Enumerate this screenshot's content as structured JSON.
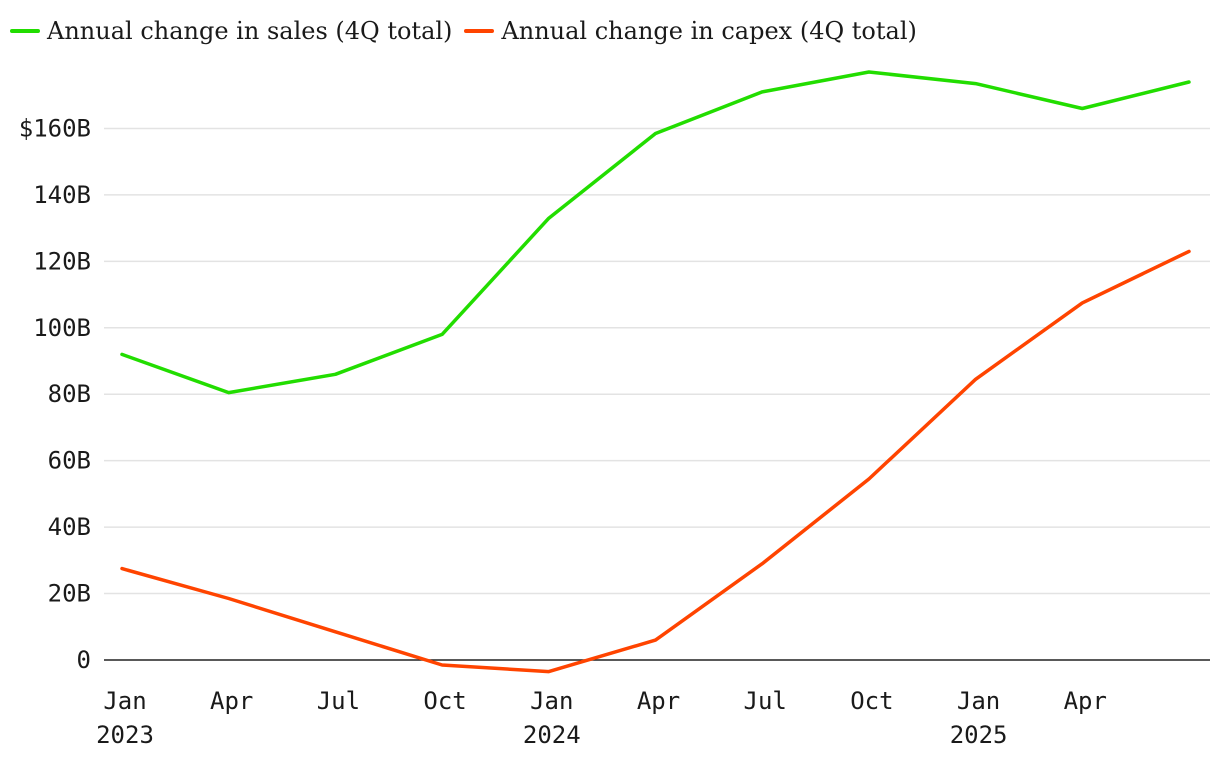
{
  "chart_data": {
    "type": "line",
    "x": [
      "2023-01",
      "2023-04",
      "2023-07",
      "2023-10",
      "2024-01",
      "2024-04",
      "2024-07",
      "2024-10",
      "2025-01",
      "2025-04",
      "2025-07"
    ],
    "x_ticks": [
      {
        "x": "2023-01",
        "label": "Jan",
        "year": "2023"
      },
      {
        "x": "2023-04",
        "label": "Apr",
        "year": ""
      },
      {
        "x": "2023-07",
        "label": "Jul",
        "year": ""
      },
      {
        "x": "2023-10",
        "label": "Oct",
        "year": ""
      },
      {
        "x": "2024-01",
        "label": "Jan",
        "year": "2024"
      },
      {
        "x": "2024-04",
        "label": "Apr",
        "year": ""
      },
      {
        "x": "2024-07",
        "label": "Jul",
        "year": ""
      },
      {
        "x": "2024-10",
        "label": "Oct",
        "year": ""
      },
      {
        "x": "2025-01",
        "label": "Jan",
        "year": "2025"
      },
      {
        "x": "2025-04",
        "label": "Apr",
        "year": ""
      }
    ],
    "y_ticks": [
      {
        "value": 0,
        "label": "0"
      },
      {
        "value": 20,
        "label": "20B"
      },
      {
        "value": 40,
        "label": "40B"
      },
      {
        "value": 60,
        "label": "60B"
      },
      {
        "value": 80,
        "label": "80B"
      },
      {
        "value": 100,
        "label": "100B"
      },
      {
        "value": 120,
        "label": "120B"
      },
      {
        "value": 140,
        "label": "140B"
      },
      {
        "value": 160,
        "label": "$160B"
      }
    ],
    "ylim": [
      -5,
      180
    ],
    "grid": true,
    "legend_position": "top-left",
    "series": [
      {
        "name": "Annual change in sales (4Q total)",
        "color": "#22dd00",
        "values": [
          92,
          80.5,
          86,
          98,
          133,
          158.5,
          171,
          177,
          173.5,
          166,
          174
        ]
      },
      {
        "name": "Annual change in capex (4Q total)",
        "color": "#ff4400",
        "values": [
          27.5,
          18.5,
          8.5,
          -1.5,
          -3.5,
          6,
          29,
          54.5,
          84.5,
          107.5,
          123
        ]
      }
    ]
  }
}
